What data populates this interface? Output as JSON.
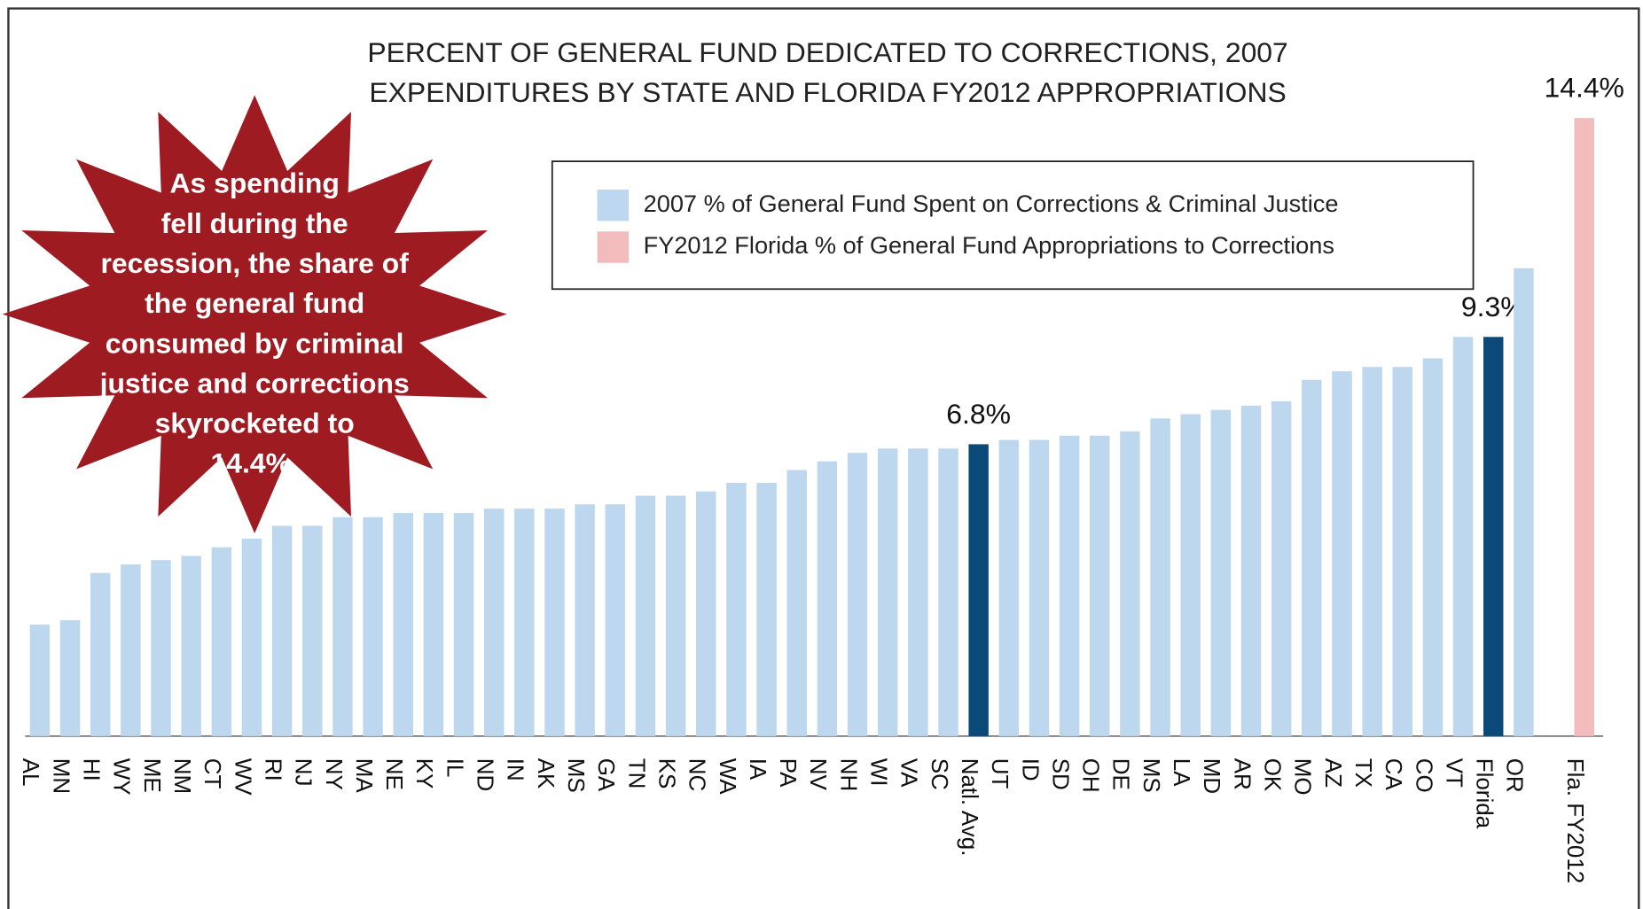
{
  "chart_data": {
    "type": "bar",
    "title": [
      "PERCENT OF GENERAL FUND DEDICATED TO CORRECTIONS, 2007",
      "EXPENDITURES BY STATE AND FLORIDA FY2012 APPROPRIATIONS"
    ],
    "categories": [
      "AL",
      "MN",
      "HI",
      "WY",
      "ME",
      "NM",
      "CT",
      "WV",
      "RI",
      "NJ",
      "NY",
      "MA",
      "NE",
      "KY",
      "IL",
      "ND",
      "IN",
      "AK",
      "MS",
      "GA",
      "TN",
      "KS",
      "NC",
      "WA",
      "IA",
      "PA",
      "NV",
      "NH",
      "WI",
      "VA",
      "SC",
      "Natl. Avg.",
      "UT",
      "ID",
      "SD",
      "OH",
      "DE",
      "MS",
      "LA",
      "MD",
      "AR",
      "OK",
      "MO",
      "AZ",
      "TX",
      "CA",
      "CO",
      "VT",
      "Florida",
      "OR",
      null,
      "Fla. FY2012"
    ],
    "series": [
      {
        "name": "2007 % of General Fund Spent on Corrections & Criminal Justice",
        "color": "#bdd7ee",
        "values": [
          2.6,
          2.7,
          3.8,
          4.0,
          4.1,
          4.2,
          4.4,
          4.6,
          4.9,
          4.9,
          5.1,
          5.1,
          5.2,
          5.2,
          5.2,
          5.3,
          5.3,
          5.3,
          5.4,
          5.4,
          5.6,
          5.6,
          5.7,
          5.9,
          5.9,
          6.2,
          6.4,
          6.6,
          6.7,
          6.7,
          6.7,
          6.8,
          6.9,
          6.9,
          7.0,
          7.0,
          7.1,
          7.4,
          7.5,
          7.6,
          7.7,
          7.8,
          8.3,
          8.5,
          8.6,
          8.6,
          8.8,
          9.3,
          9.3,
          10.9,
          null,
          null
        ],
        "value_labels": [
          null,
          null,
          null,
          null,
          null,
          null,
          null,
          null,
          null,
          null,
          null,
          null,
          null,
          null,
          null,
          null,
          null,
          null,
          null,
          null,
          null,
          null,
          null,
          null,
          null,
          null,
          null,
          null,
          null,
          null,
          null,
          "6.8%",
          null,
          null,
          null,
          null,
          null,
          null,
          null,
          null,
          null,
          null,
          null,
          null,
          null,
          null,
          null,
          null,
          "9.3%",
          null,
          null,
          null
        ]
      },
      {
        "name": "FY2012 Florida % of General Fund Appropriations to Corrections",
        "color": "#f2bcbc",
        "values": [
          null,
          null,
          null,
          null,
          null,
          null,
          null,
          null,
          null,
          null,
          null,
          null,
          null,
          null,
          null,
          null,
          null,
          null,
          null,
          null,
          null,
          null,
          null,
          null,
          null,
          null,
          null,
          null,
          null,
          null,
          null,
          null,
          null,
          null,
          null,
          null,
          null,
          null,
          null,
          null,
          null,
          null,
          null,
          null,
          null,
          null,
          null,
          null,
          null,
          null,
          null,
          14.4
        ],
        "value_labels": [
          null,
          null,
          null,
          null,
          null,
          null,
          null,
          null,
          null,
          null,
          null,
          null,
          null,
          null,
          null,
          null,
          null,
          null,
          null,
          null,
          null,
          null,
          null,
          null,
          null,
          null,
          null,
          null,
          null,
          null,
          null,
          null,
          null,
          null,
          null,
          null,
          null,
          null,
          null,
          null,
          null,
          null,
          null,
          null,
          null,
          null,
          null,
          null,
          null,
          null,
          null,
          "14.4%"
        ]
      }
    ],
    "highlight": {
      "color": "#0b4a78",
      "categories": [
        31,
        48
      ]
    },
    "ylim": [
      0,
      15
    ],
    "annotation": {
      "color": "#9e1b22",
      "lines": [
        "As spending",
        "fell during the",
        "recession, the share of",
        "the general fund",
        "consumed by criminal",
        "justice and corrections",
        "skyrocketed to",
        "14.4%."
      ]
    }
  }
}
